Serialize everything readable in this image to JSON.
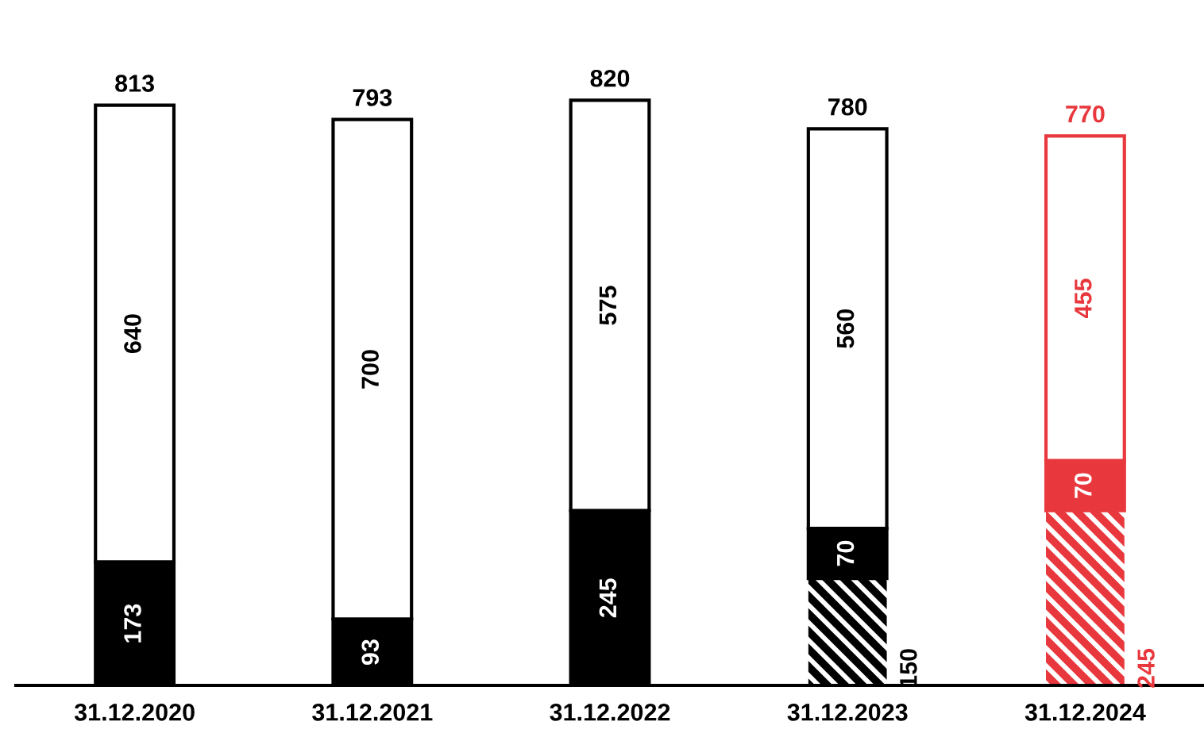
{
  "chart_data": {
    "type": "bar",
    "stacked": true,
    "data_labels": true,
    "grid": false,
    "legend": false,
    "categories": [
      "31.12.2020",
      "31.12.2021",
      "31.12.2022",
      "31.12.2023",
      "31.12.2024"
    ],
    "series": [
      {
        "values": [
          null,
          null,
          null,
          150,
          245
        ],
        "colors": [
          "#000000",
          "#000000",
          "#000000",
          "#000000",
          "#e8383d"
        ]
      },
      {
        "values": [
          173,
          93,
          245,
          70,
          70
        ],
        "colors": [
          "#000000",
          "#000000",
          "#000000",
          "#000000",
          "#e8383d"
        ]
      },
      {
        "values": [
          640,
          700,
          575,
          560,
          455
        ],
        "colors": [
          "#000000",
          "#000000",
          "#000000",
          "#000000",
          "#e8383d"
        ]
      }
    ],
    "totals": [
      "813",
      "793",
      "820",
      "780",
      "770"
    ]
  }
}
